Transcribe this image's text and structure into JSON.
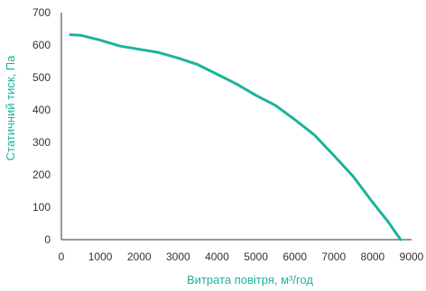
{
  "chart_data": {
    "type": "line",
    "title": "",
    "xlabel": "Витрата повітря, м³/год",
    "ylabel": "Статичний тиск, Па",
    "xlim": [
      0,
      9000
    ],
    "ylim": [
      0,
      700
    ],
    "xticks": [
      "0",
      "1000",
      "2000",
      "3000",
      "4000",
      "5000",
      "6000",
      "7000",
      "8000",
      "9000"
    ],
    "yticks": [
      "0",
      "100",
      "200",
      "300",
      "400",
      "500",
      "600",
      "700"
    ],
    "grid": false,
    "series": [
      {
        "color": "#1bb49a",
        "points": [
          [
            230,
            632
          ],
          [
            500,
            630
          ],
          [
            1000,
            615
          ],
          [
            1500,
            597
          ],
          [
            2000,
            587
          ],
          [
            2500,
            577
          ],
          [
            3000,
            560
          ],
          [
            3500,
            540
          ],
          [
            4000,
            510
          ],
          [
            4500,
            480
          ],
          [
            5000,
            445
          ],
          [
            5500,
            414
          ],
          [
            6000,
            370
          ],
          [
            6500,
            323
          ],
          [
            7000,
            260
          ],
          [
            7500,
            195
          ],
          [
            8000,
            115
          ],
          [
            8400,
            55
          ],
          [
            8600,
            20
          ],
          [
            8720,
            0
          ]
        ]
      }
    ]
  },
  "colors": {
    "series": "#1bb49a",
    "axis_title": "#1bb49a",
    "axis": "#333333",
    "tick": "#333333"
  }
}
